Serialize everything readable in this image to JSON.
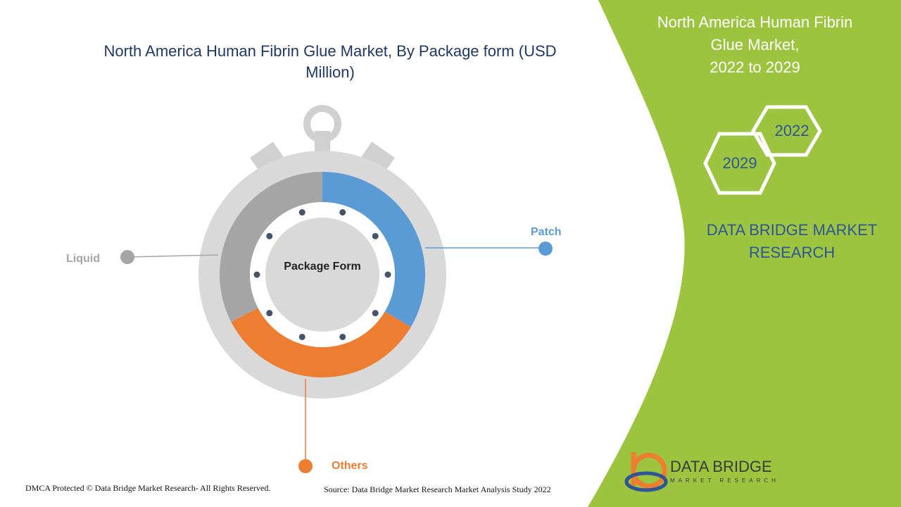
{
  "chart_data": {
    "type": "donut",
    "title": "North America Human Fibrin Glue Market, By Package form (USD Million)",
    "center_label": "Package Form",
    "categories": [
      "Patch",
      "Others",
      "Liquid"
    ],
    "values": [
      33.5,
      33.9,
      32.6
    ],
    "colors": [
      "#5b9bd5",
      "#ed7d31",
      "#a5a5a5"
    ]
  },
  "side_panel": {
    "title_lines": [
      "North America Human Fibrin",
      "Glue Market,",
      "2022 to 2029"
    ],
    "years": [
      "2022",
      "2029"
    ],
    "brand": "DATA BRIDGE MARKET RESEARCH"
  },
  "logo": {
    "name": "DATA BRIDGE",
    "tagline": "MARKET RESEARCH"
  },
  "footer": {
    "copyright": "DMCA Protected © Data Bridge Market Research- All Rights Reserved.",
    "source": "Source: Data Bridge Market Research Market Analysis Study 2022"
  }
}
